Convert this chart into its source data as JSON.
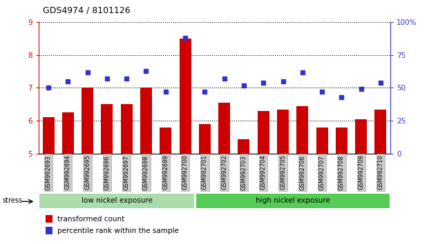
{
  "title": "GDS4974 / 8101126",
  "samples": [
    "GSM992693",
    "GSM992694",
    "GSM992695",
    "GSM992696",
    "GSM992697",
    "GSM992698",
    "GSM992699",
    "GSM992700",
    "GSM992701",
    "GSM992702",
    "GSM992703",
    "GSM992704",
    "GSM992705",
    "GSM992706",
    "GSM992707",
    "GSM992708",
    "GSM992709",
    "GSM992710"
  ],
  "bar_values": [
    6.1,
    6.25,
    7.0,
    6.5,
    6.5,
    7.0,
    5.8,
    8.5,
    5.9,
    6.55,
    5.45,
    6.3,
    6.35,
    6.45,
    5.8,
    5.8,
    6.05,
    6.35
  ],
  "dot_values_pct": [
    50,
    55,
    62,
    57,
    57,
    63,
    47,
    88,
    47,
    57,
    52,
    54,
    55,
    62,
    47,
    43,
    49,
    54
  ],
  "low_nickel_count": 8,
  "high_nickel_count": 10,
  "left_ylim": [
    5,
    9
  ],
  "right_ylim": [
    0,
    100
  ],
  "left_yticks": [
    5,
    6,
    7,
    8,
    9
  ],
  "right_yticks": [
    0,
    25,
    50,
    75,
    100
  ],
  "bar_color": "#cc0000",
  "dot_color": "#3333cc",
  "low_nickel_color": "#aaddaa",
  "high_nickel_color": "#55cc55",
  "label_color_red": "#cc0000",
  "label_color_blue": "#3333cc",
  "bg_color": "#ffffff",
  "stress_label": "stress",
  "low_label": "low nickel exposure",
  "high_label": "high nickel exposure",
  "legend_bar": "transformed count",
  "legend_dot": "percentile rank within the sample"
}
